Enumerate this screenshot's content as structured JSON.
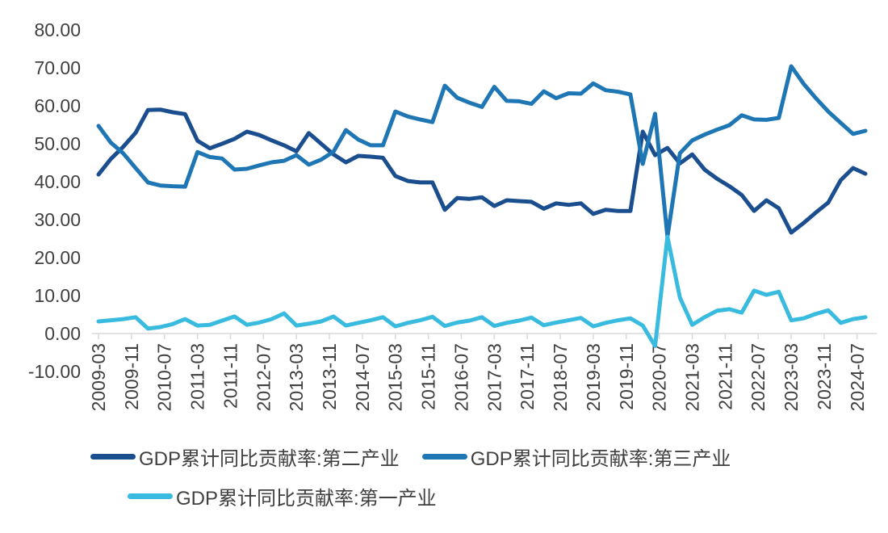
{
  "colors": {
    "background": "#FFFFFF",
    "axis_line": "#D9D9D9",
    "tick_text": "#404040",
    "secondary_industry": "#1A4E8F",
    "tertiary_industry": "#1E76B4",
    "primary_industry": "#38BBDF"
  },
  "chart_data": {
    "type": "line",
    "title": "",
    "xlabel": "",
    "ylabel": "",
    "grid": false,
    "legend_position": "bottom",
    "ylim": [
      -10,
      80
    ],
    "y_tick_labels": [
      "80.00",
      "70.00",
      "60.00",
      "50.00",
      "40.00",
      "30.00",
      "20.00",
      "10.00",
      "0.00",
      "-10.00"
    ],
    "y_tick_values": [
      80,
      70,
      60,
      50,
      40,
      30,
      20,
      10,
      0,
      -10
    ],
    "x_tick_labels": [
      "2009-03",
      "2009-11",
      "2010-07",
      "2011-03",
      "2011-11",
      "2012-07",
      "2013-03",
      "2013-11",
      "2014-07",
      "2015-03",
      "2015-11",
      "2016-07",
      "2017-03",
      "2017-11",
      "2018-07",
      "2019-03",
      "2019-11",
      "2020-07",
      "2021-03",
      "2021-11",
      "2022-07",
      "2023-03",
      "2023-11",
      "2024-07"
    ],
    "x": [
      "2009-03",
      "2009-06",
      "2009-09",
      "2009-12",
      "2010-03",
      "2010-06",
      "2010-09",
      "2010-12",
      "2011-03",
      "2011-06",
      "2011-09",
      "2011-12",
      "2012-03",
      "2012-06",
      "2012-09",
      "2012-12",
      "2013-03",
      "2013-06",
      "2013-09",
      "2013-12",
      "2014-03",
      "2014-06",
      "2014-09",
      "2014-12",
      "2015-03",
      "2015-06",
      "2015-09",
      "2015-12",
      "2016-03",
      "2016-06",
      "2016-09",
      "2016-12",
      "2017-03",
      "2017-06",
      "2017-09",
      "2017-12",
      "2018-03",
      "2018-06",
      "2018-09",
      "2018-12",
      "2019-03",
      "2019-06",
      "2019-09",
      "2019-12",
      "2020-03",
      "2020-06",
      "2020-09",
      "2020-12",
      "2021-03",
      "2021-06",
      "2021-09",
      "2021-12",
      "2022-03",
      "2022-06",
      "2022-09",
      "2022-12",
      "2023-03",
      "2023-06",
      "2023-09",
      "2023-12",
      "2024-03",
      "2024-06",
      "2024-09"
    ],
    "series": [
      {
        "key": "secondary-industry",
        "name": "GDP累计同比贡献率:第二产业",
        "color": "#1A4E8F",
        "values": [
          41.9,
          46.0,
          49.2,
          52.9,
          58.9,
          59.0,
          58.3,
          57.8,
          50.8,
          48.8,
          50.0,
          51.3,
          53.2,
          52.3,
          50.9,
          49.6,
          48.0,
          52.8,
          50.0,
          47.2,
          45.1,
          46.8,
          46.6,
          46.3,
          41.5,
          40.2,
          39.8,
          39.8,
          32.6,
          35.7,
          35.5,
          35.9,
          33.6,
          35.1,
          34.9,
          34.7,
          32.9,
          34.3,
          33.9,
          34.3,
          31.5,
          32.6,
          32.3,
          32.3,
          53.2,
          47.0,
          48.9,
          44.8,
          47.2,
          43.2,
          40.8,
          38.8,
          36.5,
          32.3,
          35.1,
          33.0,
          26.6,
          29.1,
          31.9,
          34.5,
          40.4,
          43.6,
          42.1
        ]
      },
      {
        "key": "tertiary-industry",
        "name": "GDP累计同比贡献率:第三产业",
        "color": "#1E76B4",
        "values": [
          54.7,
          50.3,
          47.5,
          43.6,
          39.8,
          39.0,
          38.8,
          38.7,
          47.8,
          46.5,
          46.1,
          43.2,
          43.4,
          44.3,
          45.1,
          45.5,
          47.0,
          44.5,
          45.8,
          47.9,
          53.6,
          51.1,
          49.6,
          49.6,
          58.5,
          57.2,
          56.4,
          55.7,
          65.3,
          62.1,
          60.8,
          59.7,
          65.0,
          61.3,
          61.2,
          60.5,
          63.8,
          62.0,
          63.3,
          63.2,
          65.9,
          64.1,
          63.7,
          63.0,
          44.7,
          57.9,
          25.5,
          47.5,
          50.9,
          52.4,
          53.7,
          54.9,
          57.5,
          56.4,
          56.3,
          56.8,
          70.4,
          65.8,
          62.0,
          58.5,
          55.5,
          52.6,
          53.4
        ]
      },
      {
        "key": "primary-industry",
        "name": "GDP累计同比贡献率:第一产业",
        "color": "#38BBDF",
        "values": [
          3.2,
          3.5,
          3.8,
          4.3,
          1.3,
          1.7,
          2.5,
          3.8,
          2.1,
          2.3,
          3.4,
          4.5,
          2.3,
          2.9,
          3.8,
          5.3,
          2.1,
          2.6,
          3.2,
          4.5,
          2.1,
          2.8,
          3.5,
          4.3,
          1.9,
          2.8,
          3.5,
          4.4,
          2.0,
          2.9,
          3.4,
          4.3,
          2.0,
          2.8,
          3.4,
          4.2,
          2.2,
          2.9,
          3.5,
          4.1,
          1.9,
          2.8,
          3.5,
          4.0,
          2.1,
          -3.3,
          25.5,
          9.5,
          2.3,
          4.3,
          6.0,
          6.4,
          5.5,
          11.3,
          10.2,
          11.0,
          3.5,
          4.0,
          5.2,
          6.1,
          2.8,
          3.8,
          4.3
        ]
      }
    ],
    "legend_rows": [
      [
        "secondary-industry",
        "tertiary-industry"
      ],
      [
        "primary-industry"
      ]
    ]
  }
}
